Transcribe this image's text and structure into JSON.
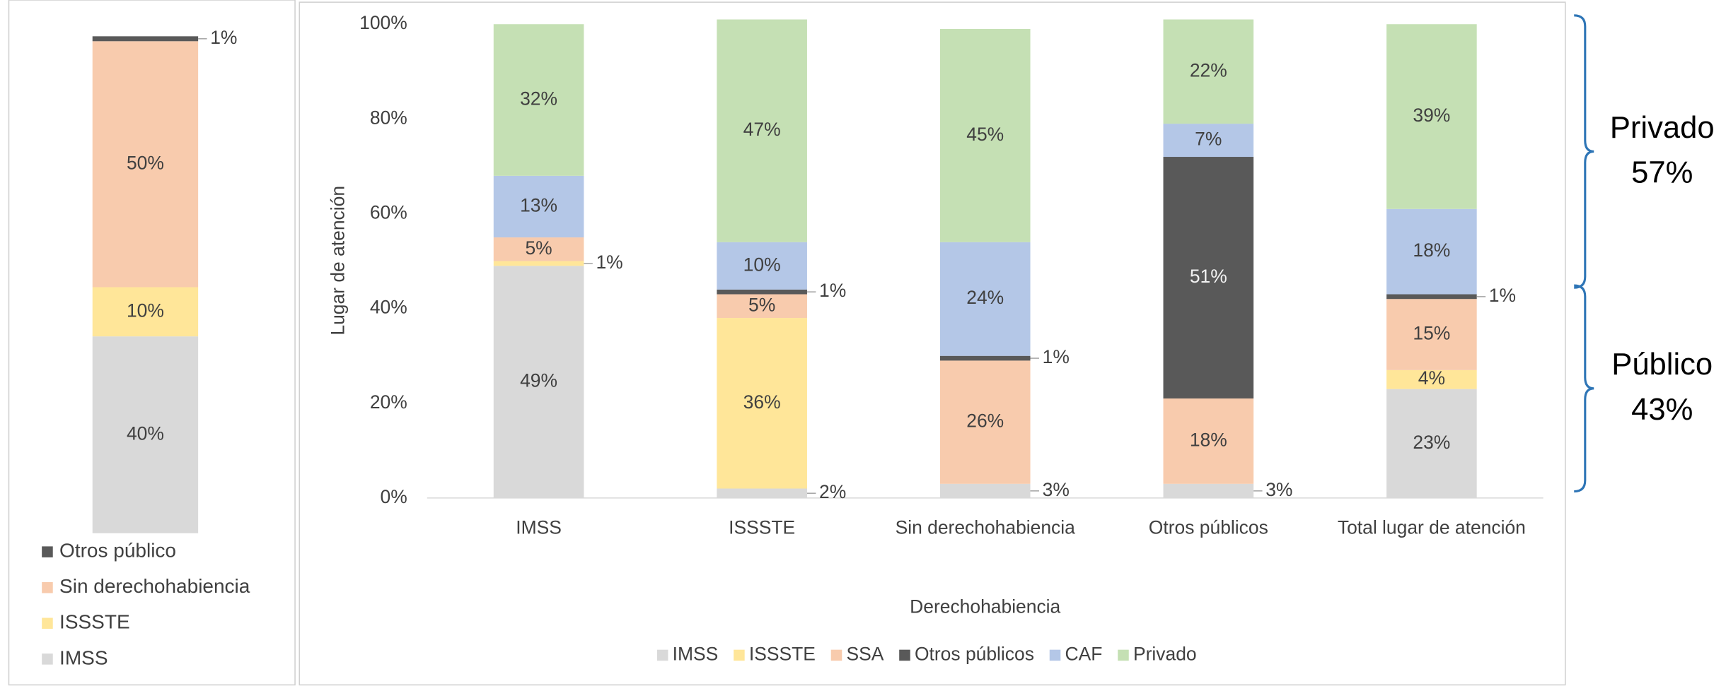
{
  "chart_data": [
    {
      "type": "bar",
      "stacked": true,
      "legend_reversed": true,
      "series": [
        {
          "name": "IMSS",
          "color": "#d9d9d9",
          "values": [
            40
          ],
          "value_labels": [
            "40%"
          ]
        },
        {
          "name": "ISSSTE",
          "color": "#ffe699",
          "values": [
            10
          ],
          "value_labels": [
            "10%"
          ]
        },
        {
          "name": "Sin derechohabiencia",
          "color": "#f8cbad",
          "values": [
            50
          ],
          "value_labels": [
            "50%"
          ]
        },
        {
          "name": "Otros público",
          "color": "#595959",
          "values": [
            1
          ],
          "value_labels": [
            "1%"
          ]
        }
      ]
    },
    {
      "type": "bar",
      "stacked": true,
      "xlabel": "Derechohabiencia",
      "ylabel": "Lugar de atención",
      "categories": [
        "IMSS",
        "ISSSTE",
        "Sin derechohabiencia",
        "Otros públicos",
        "Total lugar de atención"
      ],
      "ylim": [
        0,
        100
      ],
      "yticks": [
        {
          "value": 0,
          "label": "0%"
        },
        {
          "value": 20,
          "label": "20%"
        },
        {
          "value": 40,
          "label": "40%"
        },
        {
          "value": 60,
          "label": "60%"
        },
        {
          "value": 80,
          "label": "80%"
        },
        {
          "value": 100,
          "label": "100%"
        }
      ],
      "series": [
        {
          "name": "IMSS",
          "color": "#d9d9d9",
          "values": [
            49,
            2,
            3,
            3,
            23
          ],
          "value_labels": [
            "49%",
            "2%",
            "3%",
            "3%",
            "23%"
          ]
        },
        {
          "name": "ISSSTE",
          "color": "#ffe699",
          "values": [
            1,
            36,
            null,
            null,
            4
          ],
          "value_labels": [
            "1%",
            "36%",
            null,
            null,
            "4%"
          ]
        },
        {
          "name": "SSA",
          "color": "#f8cbad",
          "values": [
            5,
            5,
            26,
            18,
            15
          ],
          "value_labels": [
            "5%",
            "5%",
            "26%",
            "18%",
            "15%"
          ]
        },
        {
          "name": "Otros públicos",
          "color": "#595959",
          "values": [
            null,
            1,
            1,
            51,
            1
          ],
          "value_labels": [
            null,
            "1%",
            "1%",
            "51%",
            "1%"
          ]
        },
        {
          "name": "CAF",
          "color": "#b4c7e7",
          "values": [
            13,
            10,
            24,
            7,
            18
          ],
          "value_labels": [
            "13%",
            "10%",
            "24%",
            "7%",
            "18%"
          ]
        },
        {
          "name": "Privado",
          "color": "#c5e0b4",
          "values": [
            32,
            47,
            45,
            22,
            39
          ],
          "value_labels": [
            "32%",
            "47%",
            "45%",
            "22%",
            "39%"
          ]
        }
      ],
      "legend": "bottom",
      "annotations": [
        {
          "label": "Público",
          "value": 43,
          "value_label": "43%"
        },
        {
          "label": "Privado",
          "value": 57,
          "value_label": "57%"
        }
      ]
    }
  ]
}
